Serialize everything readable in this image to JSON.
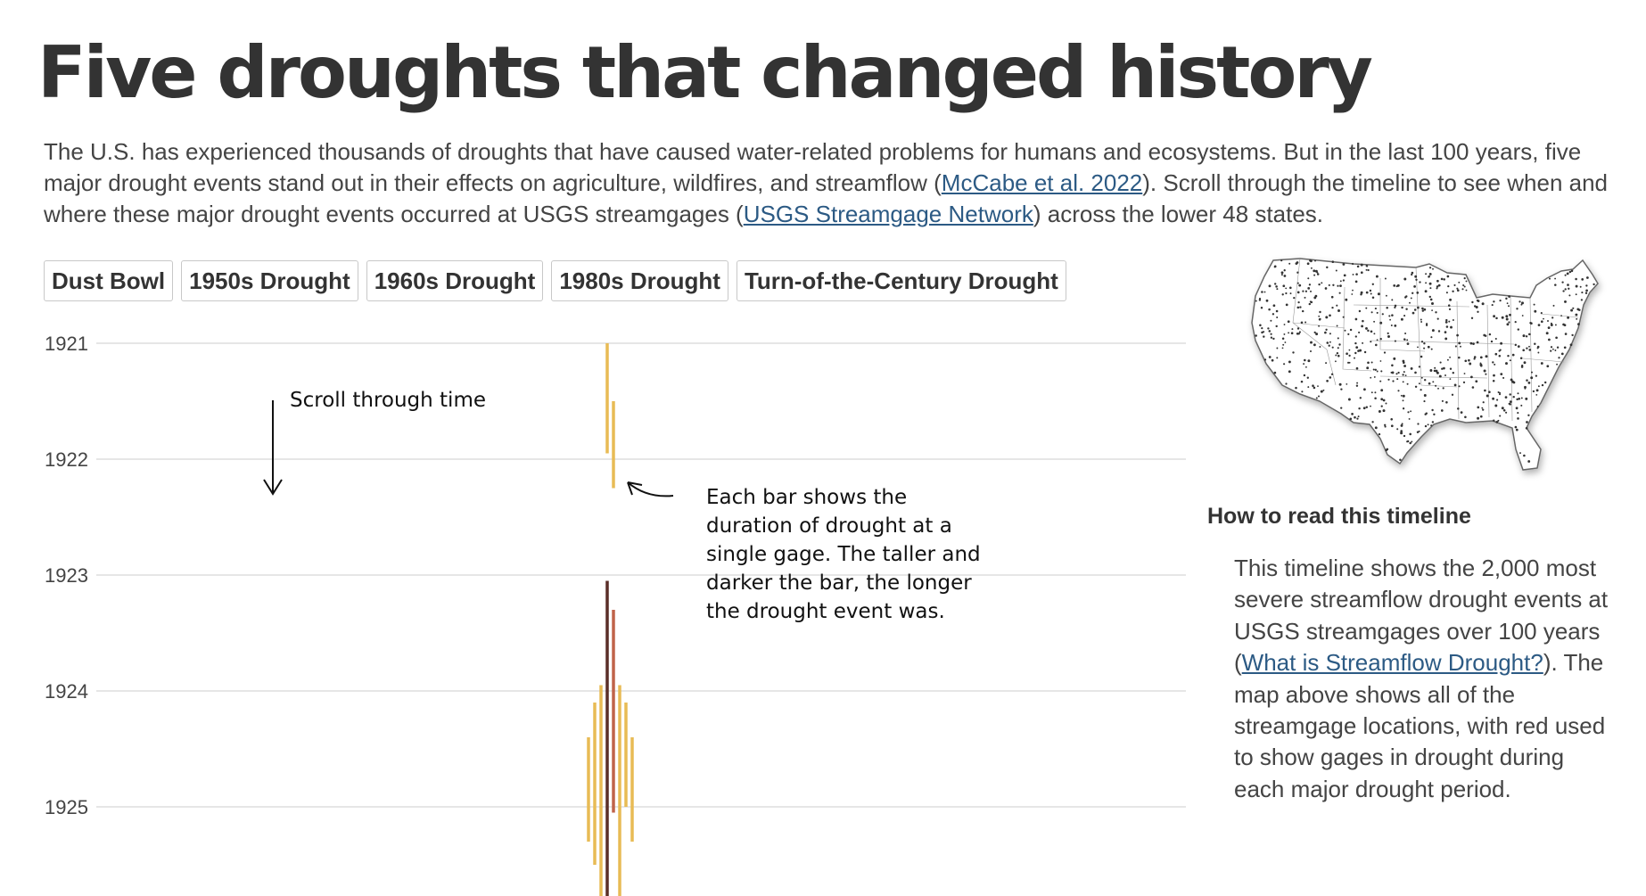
{
  "page": {
    "title": "Five droughts that changed history",
    "intro": {
      "text1": "The U.S. has experienced thousands of droughts that have caused water-related problems for humans and ecosystems. But in the last 100 years, five major drought events stand out in their effects on agriculture, wildfires, and streamflow (",
      "link1": "McCabe et al. 2022",
      "text2": "). Scroll through the timeline to see when and where these major drought events occurred at USGS streamgages (",
      "link2": "USGS Streamgage Network",
      "text3": ") across the lower 48 states."
    }
  },
  "tabs": [
    {
      "label": "Dust Bowl"
    },
    {
      "label": "1950s Drought"
    },
    {
      "label": "1960s Drought"
    },
    {
      "label": "1980s Drought"
    },
    {
      "label": "Turn-of-the-Century Drought"
    }
  ],
  "timeline": {
    "years": [
      "1921",
      "1922",
      "1923",
      "1924",
      "1925"
    ],
    "annotations": {
      "scroll": "Scroll through time",
      "bar_help": [
        "Each bar shows the",
        "duration of drought at a",
        "single gage. The taller and",
        "darker the bar, the longer",
        "the drought event was."
      ]
    },
    "colors": {
      "short": "#e8bb55",
      "medium": "#c0634a",
      "long": "#5a2e28",
      "grid": "#cccccc"
    },
    "droughts": [
      {
        "x": 0,
        "start": 1921.0,
        "end": 1921.95,
        "severity": "short"
      },
      {
        "x": 1,
        "start": 1921.5,
        "end": 1922.25,
        "severity": "short"
      },
      {
        "x": -3,
        "start": 1924.4,
        "end": 1925.3,
        "severity": "short"
      },
      {
        "x": -2,
        "start": 1924.1,
        "end": 1925.5,
        "severity": "short"
      },
      {
        "x": -1,
        "start": 1923.95,
        "end": 1925.9,
        "severity": "short"
      },
      {
        "x": 0,
        "start": 1923.05,
        "end": 1925.9,
        "severity": "long"
      },
      {
        "x": 1,
        "start": 1923.3,
        "end": 1925.05,
        "severity": "medium"
      },
      {
        "x": 2,
        "start": 1923.95,
        "end": 1925.8,
        "severity": "short"
      },
      {
        "x": 3,
        "start": 1924.1,
        "end": 1925.0,
        "severity": "short"
      },
      {
        "x": 4,
        "start": 1924.4,
        "end": 1925.3,
        "severity": "short"
      }
    ]
  },
  "map": {
    "alt": "Map of USGS streamgage locations in the lower 48 states"
  },
  "howto": {
    "title": "How to read this timeline",
    "text1": "This timeline shows the 2,000 most severe streamflow drought events at USGS streamgages over 100 years (",
    "link": "What is Streamflow Drought?",
    "text2": "). The map above shows all of the streamgage locations, with red used to show gages in drought during each major drought period."
  }
}
